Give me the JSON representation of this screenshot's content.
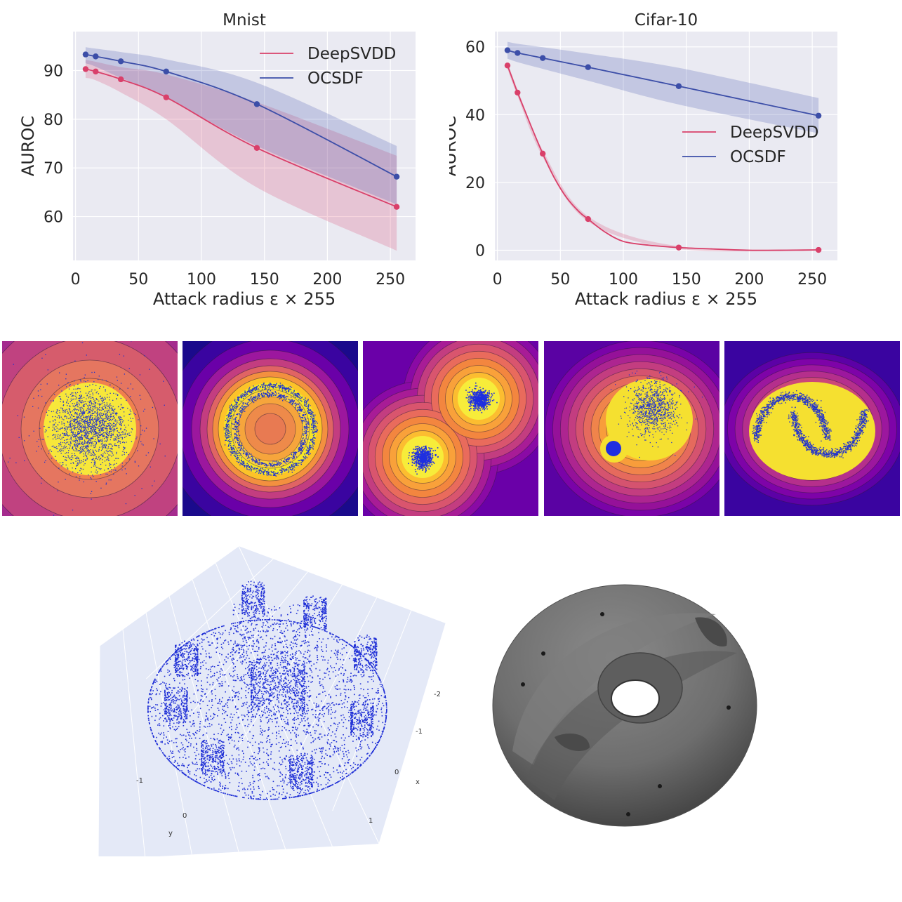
{
  "chart_data": [
    {
      "type": "line",
      "title": "Mnist",
      "xlabel": "Attack radius ε × 255",
      "ylabel": "AUROC",
      "xlim": [
        -2,
        270
      ],
      "ylim": [
        51,
        98
      ],
      "xticks": [
        0,
        50,
        100,
        150,
        200,
        250
      ],
      "yticks": [
        60,
        70,
        80,
        90
      ],
      "grid": true,
      "legend": "top-right",
      "x": [
        8,
        16,
        36,
        72,
        144,
        255
      ],
      "series": [
        {
          "name": "DeepSVDD",
          "color": "#d9406a",
          "values": [
            90.3,
            89.8,
            88.2,
            84.5,
            74.1,
            62.0
          ],
          "lower": [
            88.5,
            88.0,
            85.5,
            80.0,
            66.0,
            53.0
          ],
          "upper": [
            92.2,
            91.8,
            90.7,
            89.2,
            83.5,
            72.5
          ]
        },
        {
          "name": "OCSDF",
          "color": "#3c4ea8",
          "values": [
            93.3,
            92.9,
            91.9,
            89.8,
            83.1,
            68.2
          ],
          "lower": [
            91.5,
            90.8,
            88.5,
            84.5,
            74.5,
            62.5
          ],
          "upper": [
            94.8,
            94.5,
            93.8,
            92.3,
            87.5,
            74.5
          ]
        }
      ]
    },
    {
      "type": "line",
      "title": "Cifar-10",
      "xlabel": "Attack radius ε × 255",
      "ylabel": "AUROC",
      "xlim": [
        -2,
        270
      ],
      "ylim": [
        -3,
        64.5
      ],
      "xticks": [
        0,
        50,
        100,
        150,
        200,
        250
      ],
      "yticks": [
        0,
        20,
        40,
        60
      ],
      "grid": true,
      "legend": "center-right",
      "x": [
        8,
        16,
        36,
        72,
        144,
        255
      ],
      "series": [
        {
          "name": "DeepSVDD",
          "color": "#d9406a",
          "values": [
            54.5,
            46.5,
            28.5,
            9.2,
            0.8,
            0.1
          ],
          "lower": [
            53.5,
            45.5,
            27.5,
            8.5,
            0.4,
            0.0
          ],
          "upper": [
            55.5,
            47.5,
            29.5,
            10.0,
            1.2,
            0.3
          ],
          "smooth_points": [
            [
              8,
              54.5
            ],
            [
              12,
              50.5
            ],
            [
              16,
              46.5
            ],
            [
              22,
              41.0
            ],
            [
              28,
              35.5
            ],
            [
              36,
              28.5
            ],
            [
              45,
              21.5
            ],
            [
              55,
              15.5
            ],
            [
              65,
              11.3
            ],
            [
              72,
              9.2
            ],
            [
              85,
              5.5
            ],
            [
              100,
              2.6
            ],
            [
              120,
              1.5
            ],
            [
              144,
              0.8
            ],
            [
              170,
              0.4
            ],
            [
              200,
              0.0
            ],
            [
              230,
              0.0
            ],
            [
              255,
              0.1
            ]
          ]
        },
        {
          "name": "OCSDF",
          "color": "#3c4ea8",
          "values": [
            59.0,
            58.2,
            56.7,
            54.0,
            48.4,
            39.7
          ],
          "lower": [
            56.5,
            55.5,
            53.5,
            50.0,
            43.0,
            34.5
          ],
          "upper": [
            61.5,
            60.9,
            59.9,
            58.0,
            53.8,
            44.9
          ]
        }
      ]
    }
  ],
  "sdf_panels": [
    {
      "name": "sdf-panel-gaussian",
      "pattern": "gaussian"
    },
    {
      "name": "sdf-panel-rings",
      "pattern": "rings"
    },
    {
      "name": "sdf-panel-two-blobs",
      "pattern": "two-blobs"
    },
    {
      "name": "sdf-panel-blob-and-cluster",
      "pattern": "blob-cluster"
    },
    {
      "name": "sdf-panel-two-moons",
      "pattern": "two-moons"
    }
  ],
  "pointcloud_3d": {
    "axis_x_label": "x",
    "axis_y_label": "y",
    "x_tick_labels": [
      "-2",
      "-1",
      "0",
      "1"
    ],
    "y_tick_labels": [
      "-1",
      "0"
    ],
    "point_color": "#1f2fd6"
  },
  "mesh_3d": {
    "surface_color": "#6e6e6e"
  }
}
